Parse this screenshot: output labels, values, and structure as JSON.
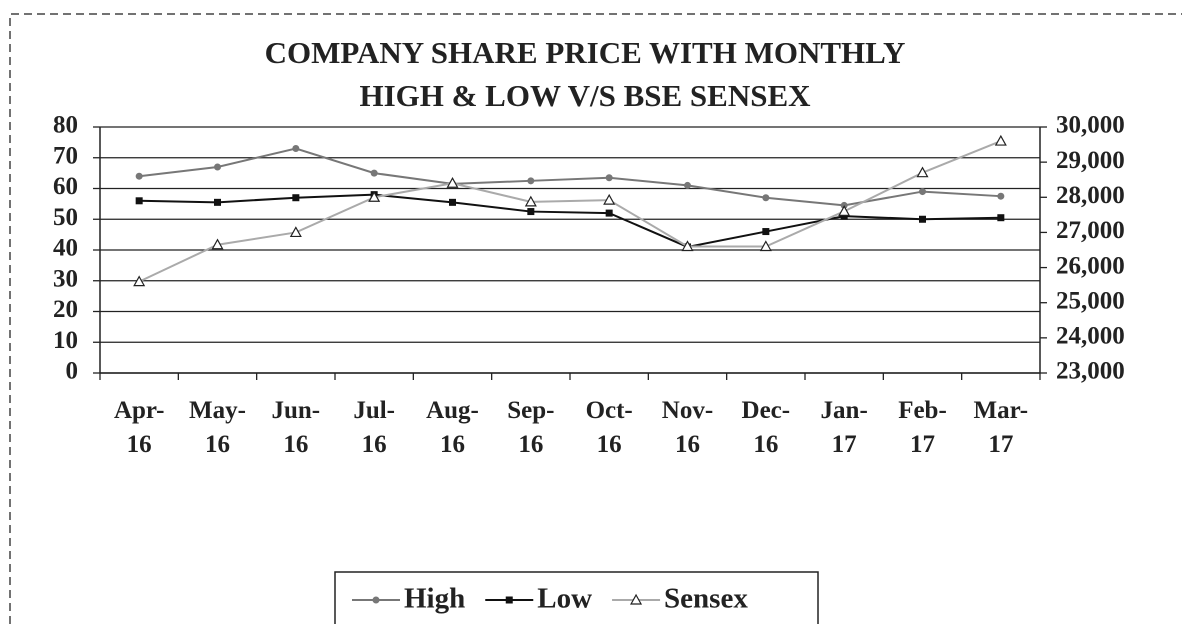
{
  "chart_data": {
    "type": "line",
    "title": [
      "COMPANY SHARE PRICE WITH MONTHLY",
      "HIGH & LOW V/S BSE SENSEX"
    ],
    "categories": [
      "Apr-16",
      "May-16",
      "Jun-16",
      "Jul-16",
      "Aug-16",
      "Sep-16",
      "Oct-16",
      "Nov-16",
      "Dec-16",
      "Jan-17",
      "Feb-17",
      "Mar-17"
    ],
    "series": [
      {
        "name": "High",
        "color": "#777777",
        "marker": "circle",
        "values": [
          64,
          67,
          73,
          65,
          61.5,
          62.5,
          63.5,
          61,
          57,
          54.5,
          59,
          57.5
        ]
      },
      {
        "name": "Low",
        "color": "#111111",
        "marker": "square",
        "values": [
          56,
          55.5,
          57,
          58,
          55.5,
          52.5,
          52,
          41,
          46,
          51,
          50,
          50.5
        ]
      },
      {
        "name": "Sensex",
        "color": "#aaaaaa",
        "marker": "triangle",
        "axis": "y2",
        "values": [
          25600,
          26650,
          27000,
          28000,
          28400,
          27870,
          27920,
          26600,
          26600,
          27600,
          28700,
          29600
        ]
      }
    ],
    "ylim": [
      0,
      80
    ],
    "yticks": [
      0,
      10,
      20,
      30,
      40,
      50,
      60,
      70,
      80
    ],
    "y2lim": [
      23000,
      30000
    ],
    "y2ticks": [
      {
        "value": 23000,
        "label": "23,000"
      },
      {
        "value": 24000,
        "label": "24,000"
      },
      {
        "value": 25000,
        "label": "25,000"
      },
      {
        "value": 26000,
        "label": "26,000"
      },
      {
        "value": 27000,
        "label": "27,000"
      },
      {
        "value": 28000,
        "label": "28,000"
      },
      {
        "value": 29000,
        "label": "29,000"
      },
      {
        "value": 30000,
        "label": "30,000"
      }
    ],
    "grid": true,
    "legend": "bottom"
  }
}
